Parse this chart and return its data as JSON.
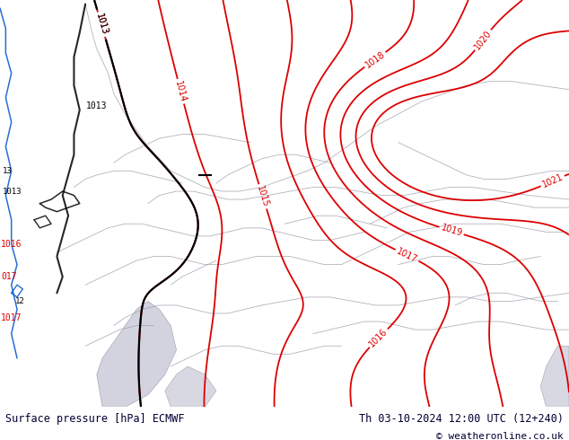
{
  "title_left": "Surface pressure [hPa] ECMWF",
  "title_right": "Th 03-10-2024 12:00 UTC (12+240)",
  "copyright": "© weatheronline.co.uk",
  "bg_color": "#c2e88a",
  "contour_color_red": "#dd0000",
  "contour_color_black": "#000000",
  "contour_color_blue": "#0055cc",
  "border_color": "#9999aa",
  "sea_color": "#c8c8d8",
  "footer_bg": "#ffffff",
  "footer_text": "#000033",
  "figsize": [
    6.34,
    4.9
  ],
  "dpi": 100,
  "levels": [
    1013,
    1014,
    1015,
    1016,
    1017,
    1018,
    1019,
    1020,
    1021
  ]
}
